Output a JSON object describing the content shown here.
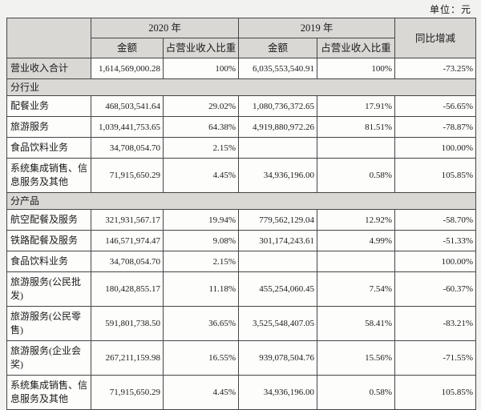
{
  "unit_label": "单位：元",
  "colors": {
    "shaded_bg": "#d9d8d5",
    "cell_bg": "#fdfdfc",
    "border": "#454545",
    "page_bg": "#f2f2f0",
    "text": "#1a1a1a"
  },
  "table": {
    "header": {
      "year_2020": "2020 年",
      "year_2019": "2019 年",
      "amount": "金额",
      "share": "占营业收入比重",
      "yoy": "同比增减"
    },
    "rows": [
      {
        "type": "data",
        "shaded_label": true,
        "label": "营业收入合计",
        "amount_2020": "1,614,569,000.28",
        "share_2020": "100%",
        "amount_2019": "6,035,553,540.91",
        "share_2019": "100%",
        "yoy": "-73.25%"
      },
      {
        "type": "section",
        "label": "分行业"
      },
      {
        "type": "data",
        "label": "配餐业务",
        "amount_2020": "468,503,541.64",
        "share_2020": "29.02%",
        "amount_2019": "1,080,736,372.65",
        "share_2019": "17.91%",
        "yoy": "-56.65%"
      },
      {
        "type": "data",
        "label": "旅游服务",
        "amount_2020": "1,039,441,753.65",
        "share_2020": "64.38%",
        "amount_2019": "4,919,880,972.26",
        "share_2019": "81.51%",
        "yoy": "-78.87%"
      },
      {
        "type": "data",
        "label": "食品饮料业务",
        "amount_2020": "34,708,054.70",
        "share_2020": "2.15%",
        "amount_2019": "",
        "share_2019": "",
        "yoy": "100.00%"
      },
      {
        "type": "data",
        "label": "系统集成销售、信息服务及其他",
        "amount_2020": "71,915,650.29",
        "share_2020": "4.45%",
        "amount_2019": "34,936,196.00",
        "share_2019": "0.58%",
        "yoy": "105.85%"
      },
      {
        "type": "section",
        "label": "分产品"
      },
      {
        "type": "data",
        "label": "航空配餐及服务",
        "amount_2020": "321,931,567.17",
        "share_2020": "19.94%",
        "amount_2019": "779,562,129.04",
        "share_2019": "12.92%",
        "yoy": "-58.70%"
      },
      {
        "type": "data",
        "label": "铁路配餐及服务",
        "amount_2020": "146,571,974.47",
        "share_2020": "9.08%",
        "amount_2019": "301,174,243.61",
        "share_2019": "4.99%",
        "yoy": "-51.33%"
      },
      {
        "type": "data",
        "label": "食品饮料业务",
        "amount_2020": "34,708,054.70",
        "share_2020": "2.15%",
        "amount_2019": "",
        "share_2019": "",
        "yoy": "100.00%"
      },
      {
        "type": "data",
        "label": "旅游服务(公民批发)",
        "amount_2020": "180,428,855.17",
        "share_2020": "11.18%",
        "amount_2019": "455,254,060.45",
        "share_2019": "7.54%",
        "yoy": "-60.37%"
      },
      {
        "type": "data",
        "label": "旅游服务(公民零售)",
        "amount_2020": "591,801,738.50",
        "share_2020": "36.65%",
        "amount_2019": "3,525,548,407.05",
        "share_2019": "58.41%",
        "yoy": "-83.21%"
      },
      {
        "type": "data",
        "label": "旅游服务(企业会奖)",
        "amount_2020": "267,211,159.98",
        "share_2020": "16.55%",
        "amount_2019": "939,078,504.76",
        "share_2019": "15.56%",
        "yoy": "-71.55%"
      },
      {
        "type": "data",
        "label": "系统集成销售、信息服务及其他",
        "amount_2020": "71,915,650.29",
        "share_2020": "4.45%",
        "amount_2019": "34,936,196.00",
        "share_2019": "0.58%",
        "yoy": "105.85%"
      }
    ]
  }
}
